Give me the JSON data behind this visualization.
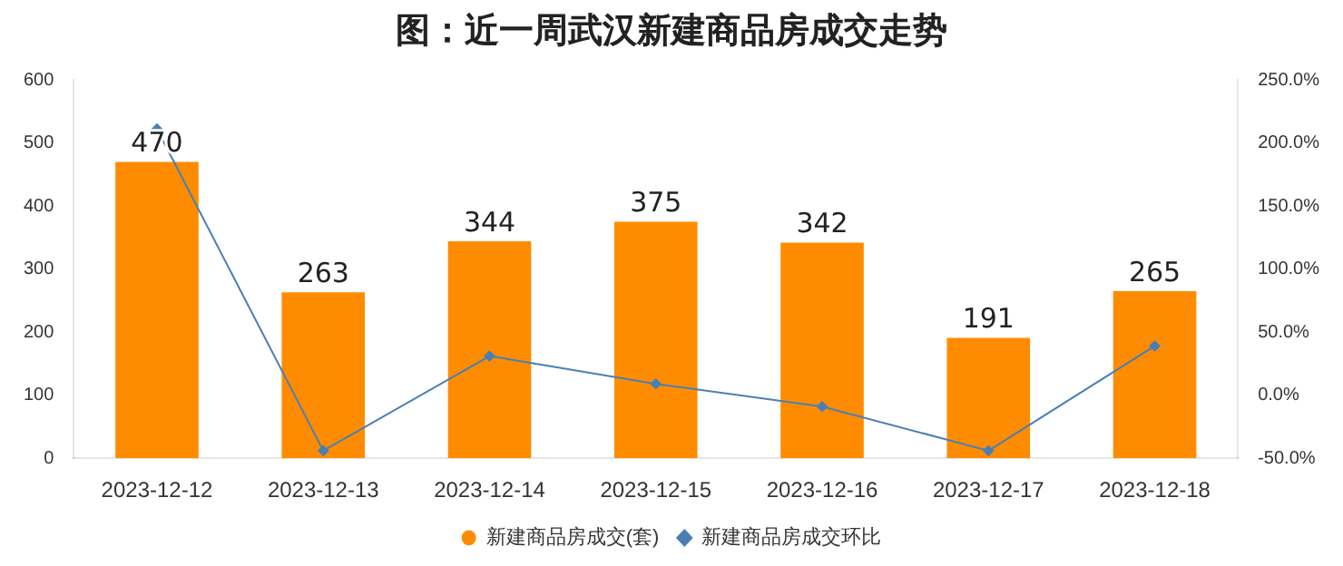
{
  "chart_data": {
    "type": "bar",
    "title": "图：近一周武汉新建商品房成交走势",
    "categories": [
      "2023-12-12",
      "2023-12-13",
      "2023-12-14",
      "2023-12-15",
      "2023-12-16",
      "2023-12-17",
      "2023-12-18"
    ],
    "series": [
      {
        "name": "新建商品房成交(套)",
        "color": "#ff8c00",
        "values": [
          470,
          263,
          344,
          375,
          342,
          191,
          265
        ],
        "value_labels": [
          "470",
          "263",
          "344",
          "375",
          "342",
          "191",
          "265"
        ]
      },
      {
        "name": "新建商品房成交环比",
        "type": "line",
        "axis": "y2",
        "color": "#4a7fb5",
        "marker": "diamond",
        "values": [
          211,
          -44,
          31,
          9,
          -9,
          -44,
          39
        ]
      }
    ],
    "ylim": [
      0,
      600
    ],
    "yticks": [
      0,
      100,
      200,
      300,
      400,
      500,
      600
    ],
    "y2lim": [
      -50,
      250
    ],
    "y2ticks": [
      {
        "value": -50,
        "label": "-50.0%"
      },
      {
        "value": 0,
        "label": "0.0%"
      },
      {
        "value": 50,
        "label": "50.0%"
      },
      {
        "value": 100,
        "label": "100.0%"
      },
      {
        "value": 150,
        "label": "150.0%"
      },
      {
        "value": 200,
        "label": "200.0%"
      },
      {
        "value": 250,
        "label": "250.0%"
      }
    ],
    "grid": false,
    "legend": "bottom"
  }
}
